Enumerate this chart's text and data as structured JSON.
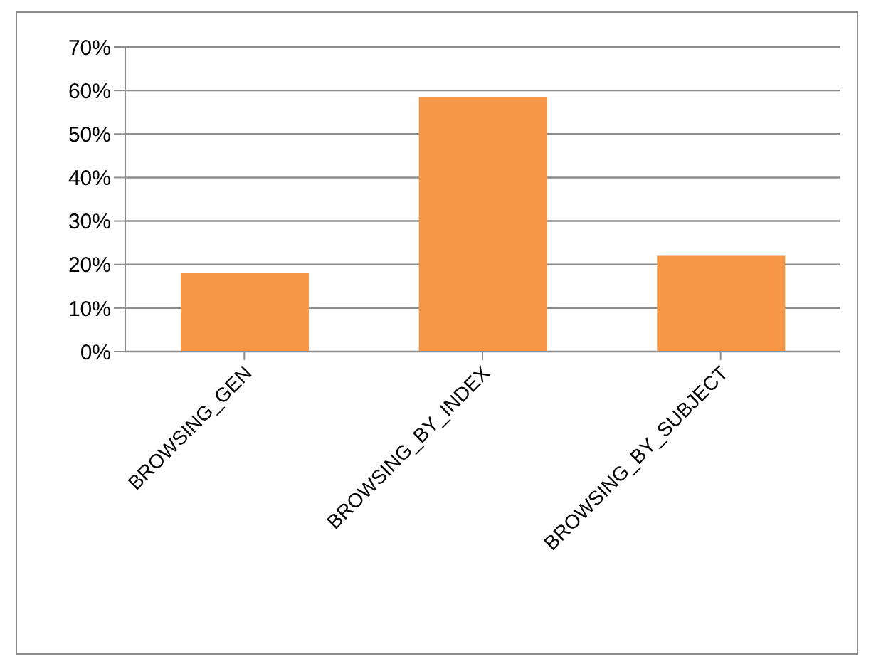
{
  "chart_data": {
    "type": "bar",
    "categories": [
      "BROWSING_GEN",
      "BROWSING_BY_INDEX",
      "BROWSING_BY_SUBJECT"
    ],
    "values": [
      18,
      58.5,
      22
    ],
    "color": "#f79646",
    "ylim": [
      0,
      70
    ],
    "yticks": [
      {
        "value": 0,
        "label": "0%"
      },
      {
        "value": 10,
        "label": "10%"
      },
      {
        "value": 20,
        "label": "20%"
      },
      {
        "value": 30,
        "label": "30%"
      },
      {
        "value": 40,
        "label": "40%"
      },
      {
        "value": 50,
        "label": "50%"
      },
      {
        "value": 60,
        "label": "60%"
      },
      {
        "value": 70,
        "label": "70%"
      }
    ],
    "grid": "y",
    "legend": false
  }
}
